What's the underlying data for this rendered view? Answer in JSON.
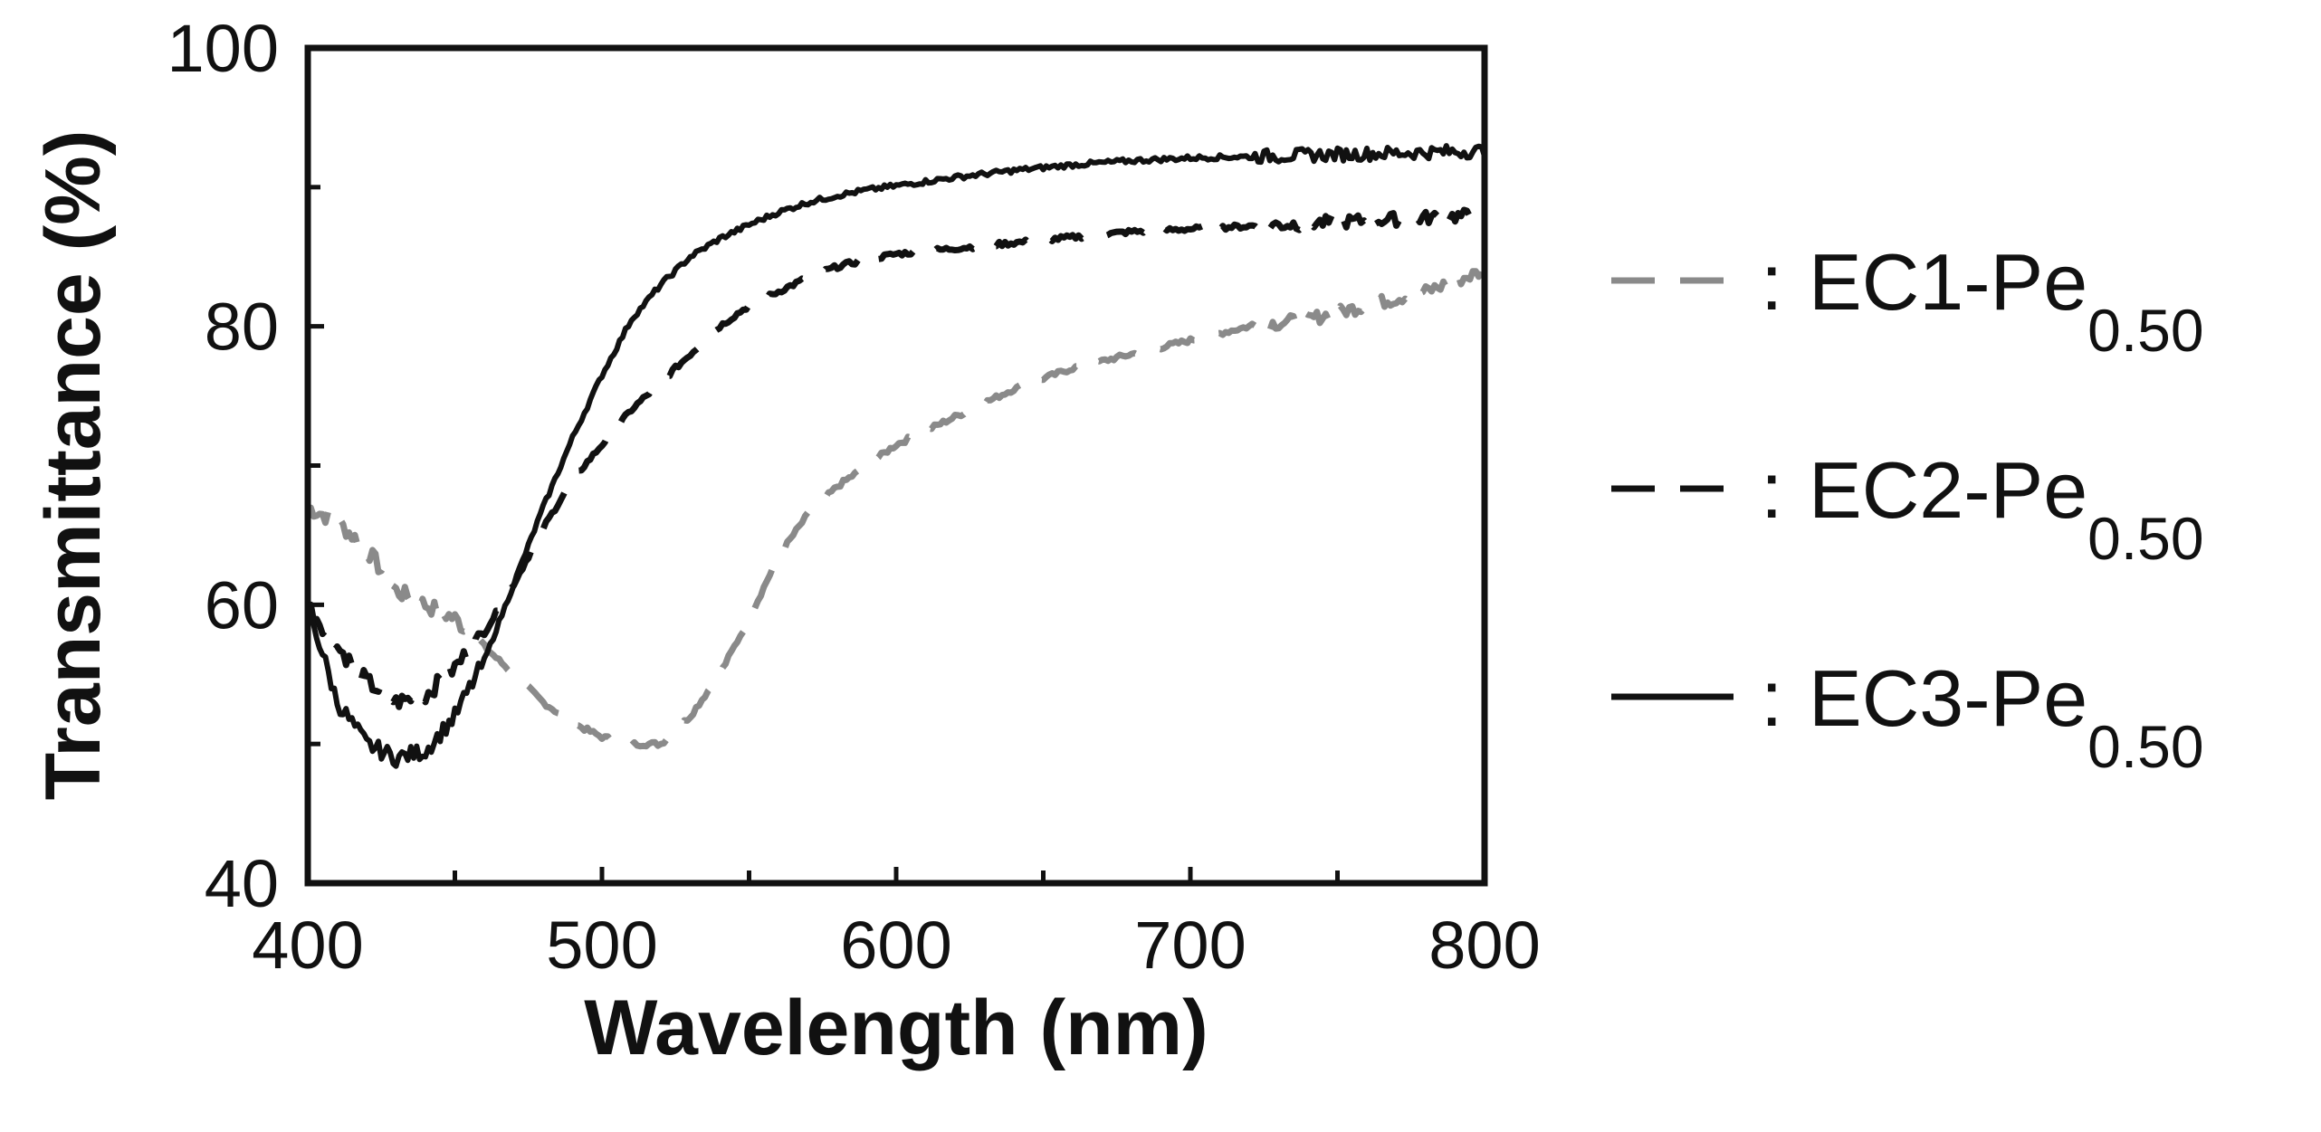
{
  "chart_data": {
    "type": "line",
    "title": "",
    "xlabel": "Wavelength (nm)",
    "ylabel": "Transmittance (%)",
    "xlim": [
      400,
      800
    ],
    "ylim": [
      40,
      100
    ],
    "x_ticks": [
      400,
      500,
      600,
      700,
      800
    ],
    "x_tick_labels": [
      "400",
      "500",
      "600",
      "700",
      "800"
    ],
    "y_ticks": [
      40,
      60,
      80,
      100
    ],
    "y_tick_labels": [
      "40",
      "60",
      "80",
      "100"
    ],
    "x_minor_ticks": [
      450,
      550,
      650,
      750
    ],
    "y_minor_ticks": [
      50,
      70,
      90
    ],
    "grid": false,
    "legend_position": "right",
    "x": [
      400,
      410,
      420,
      430,
      440,
      450,
      460,
      470,
      480,
      490,
      500,
      510,
      520,
      530,
      540,
      550,
      560,
      570,
      580,
      590,
      600,
      620,
      640,
      660,
      680,
      700,
      720,
      740,
      760,
      780,
      800
    ],
    "series": [
      {
        "name": "EC1-Pe",
        "label_main": "EC1-Pe",
        "label_sub": "0.50",
        "separator": ":",
        "color": "#8a8a8a",
        "dash": "dashed",
        "values": [
          67,
          66,
          64,
          61,
          60,
          59,
          57,
          55,
          53,
          51.5,
          50.5,
          50,
          50,
          52,
          55,
          59,
          63.5,
          66.5,
          68.5,
          70,
          71.5,
          73.5,
          75.5,
          77,
          78,
          79,
          80,
          80.5,
          81.5,
          82.5,
          84
        ]
      },
      {
        "name": "EC2-Pe",
        "label_main": "EC2-Pe",
        "label_sub": "0.50",
        "separator": ":",
        "color": "#111111",
        "dash": "dashed",
        "values": [
          60,
          57,
          54.5,
          53,
          53.5,
          55.5,
          58,
          61.5,
          65.5,
          69,
          71.5,
          74,
          76,
          78,
          80,
          81.5,
          82.5,
          83.5,
          84.3,
          84.8,
          85.2,
          85.6,
          86,
          86.4,
          86.8,
          87,
          87.2,
          87.4,
          87.6,
          87.8,
          88
        ]
      },
      {
        "name": "EC3-Pe",
        "label_main": "EC3-Pe",
        "label_sub": "0.50",
        "separator": ":",
        "color": "#111111",
        "dash": "solid",
        "values": [
          60,
          53,
          50,
          49,
          49.5,
          52,
          56,
          61.5,
          67,
          72,
          76.5,
          80.5,
          83,
          85,
          86.3,
          87.3,
          88.2,
          88.9,
          89.4,
          89.8,
          90.1,
          90.7,
          91.2,
          91.6,
          91.9,
          92.1,
          92.2,
          92.3,
          92.4,
          92.5,
          92.6
        ]
      }
    ]
  }
}
